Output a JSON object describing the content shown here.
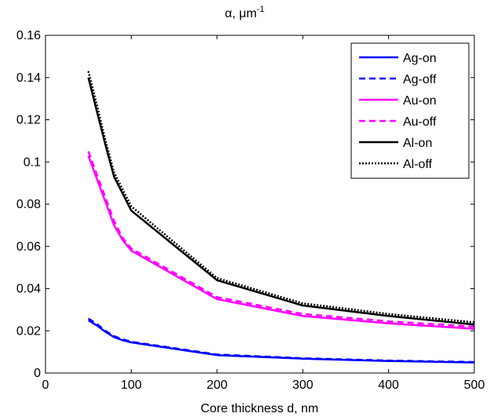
{
  "chart_data": {
    "type": "line",
    "title_main": "α, μm",
    "title_sup": "-1",
    "xlabel": "Core thickness d, nm",
    "ylabel": "",
    "xlim": [
      0,
      500
    ],
    "ylim": [
      0,
      0.16
    ],
    "xticks": [
      0,
      100,
      200,
      300,
      400,
      500
    ],
    "xtick_labels": [
      "0",
      "100",
      "200",
      "300",
      "400",
      "500"
    ],
    "yticks": [
      0,
      0.02,
      0.04,
      0.06,
      0.08,
      0.1,
      0.12,
      0.14,
      0.16
    ],
    "ytick_labels": [
      "0",
      "0.02",
      "0.04",
      "0.06",
      "0.08",
      "0.1",
      "0.12",
      "0.14",
      "0.16"
    ],
    "grid": false,
    "legend_position": "top-right",
    "x": [
      50,
      60,
      70,
      80,
      90,
      100,
      200,
      300,
      400,
      500
    ],
    "series": [
      {
        "name": "Ag-on",
        "color": "#0000ff",
        "dash": "solid",
        "values": [
          0.025,
          0.0225,
          0.0195,
          0.017,
          0.0155,
          0.0145,
          0.0085,
          0.0068,
          0.0057,
          0.005
        ]
      },
      {
        "name": "Ag-off",
        "color": "#0000ff",
        "dash": "dashed",
        "values": [
          0.0258,
          0.0232,
          0.02,
          0.0175,
          0.016,
          0.0148,
          0.0088,
          0.007,
          0.0059,
          0.0052
        ]
      },
      {
        "name": "Au-on",
        "color": "#ff00ff",
        "dash": "solid",
        "values": [
          0.103,
          0.092,
          0.081,
          0.07,
          0.063,
          0.058,
          0.035,
          0.027,
          0.0235,
          0.021
        ]
      },
      {
        "name": "Au-off",
        "color": "#ff00ff",
        "dash": "dashed",
        "values": [
          0.105,
          0.094,
          0.083,
          0.072,
          0.064,
          0.059,
          0.036,
          0.028,
          0.0245,
          0.022
        ]
      },
      {
        "name": "Al-on",
        "color": "#000000",
        "dash": "solid",
        "values": [
          0.14,
          0.124,
          0.108,
          0.093,
          0.085,
          0.077,
          0.044,
          0.032,
          0.027,
          0.023
        ]
      },
      {
        "name": "Al-off",
        "color": "#000000",
        "dash": "dotted",
        "values": [
          0.143,
          0.127,
          0.11,
          0.095,
          0.087,
          0.079,
          0.045,
          0.033,
          0.028,
          0.024
        ]
      }
    ]
  }
}
